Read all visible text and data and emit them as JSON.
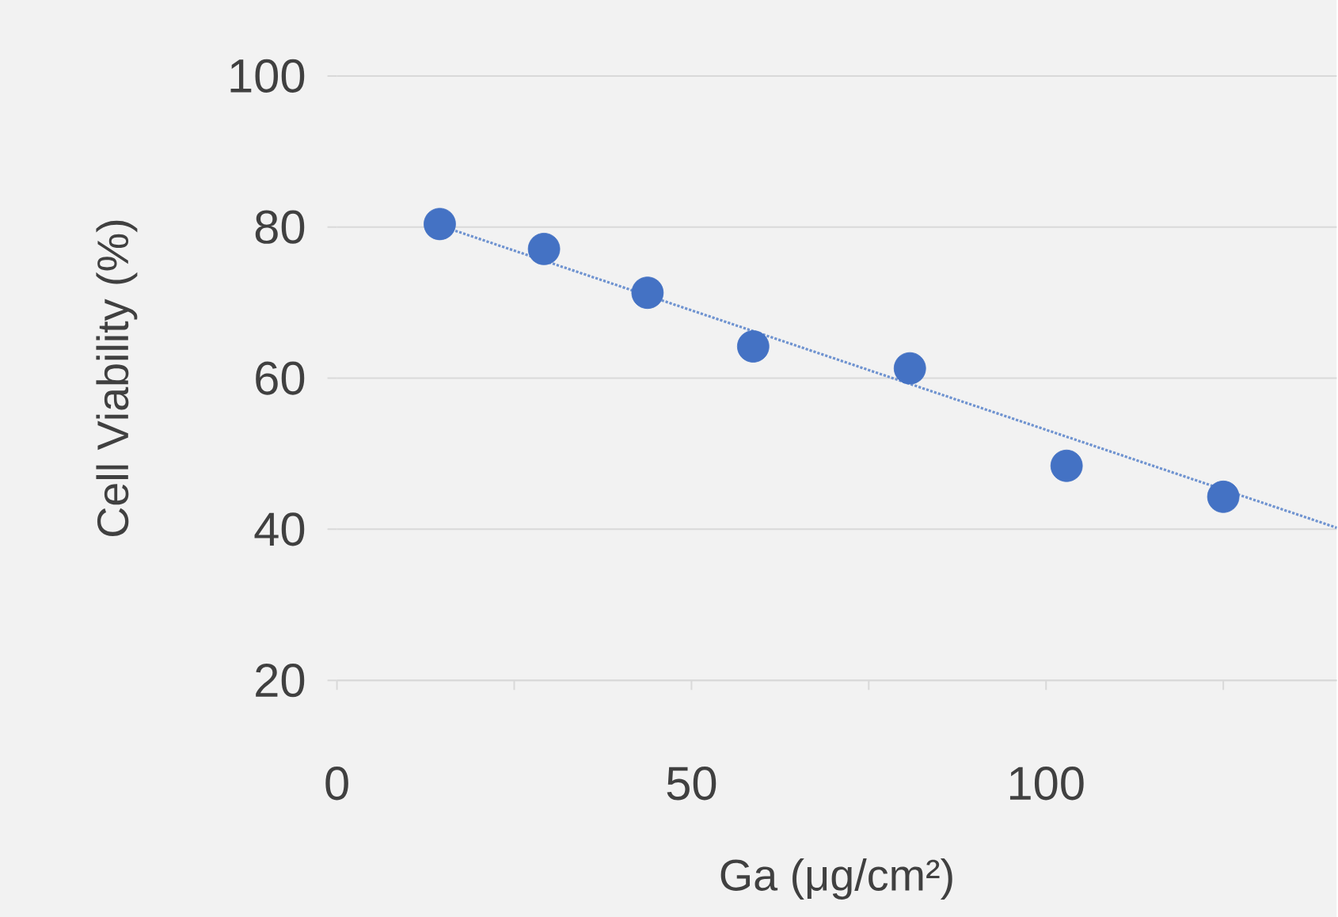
{
  "chart_data": {
    "type": "scatter",
    "xlabel": "Ga (μg/cm²)",
    "ylabel": "Cell Viability (%)",
    "x": [
      14.5,
      29.2,
      43.8,
      58.7,
      80.8,
      102.9,
      125
    ],
    "series": [
      {
        "color": "#4472c4",
        "values": [
          80.4,
          77.1,
          71.3,
          64.2,
          61.3,
          48.4,
          44.3
        ]
      },
      {
        "type": "line",
        "color": "#6f93d0",
        "line_style": "dotted",
        "marker": "none",
        "x": [
          14.5,
          141
        ],
        "values": [
          80.2,
          40.2
        ]
      }
    ],
    "xlim": [
      0,
      141
    ],
    "ylim": [
      20,
      100
    ],
    "xticks": [
      0,
      {
        "value": 25,
        "label": null
      },
      50,
      {
        "value": 75,
        "label": null
      },
      100,
      {
        "value": 125,
        "label": null
      }
    ],
    "yticks": [
      20,
      40,
      60,
      80,
      100
    ],
    "grid": "y",
    "marker": "circle"
  }
}
